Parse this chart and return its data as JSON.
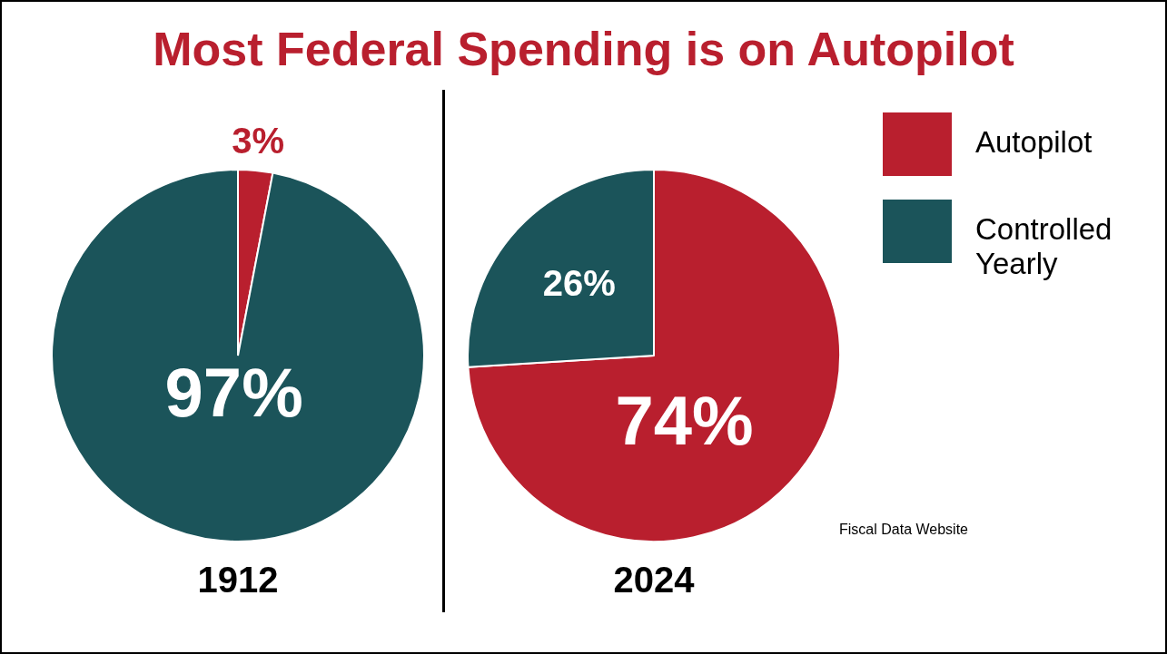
{
  "chart_data": [
    {
      "type": "pie",
      "title": "Most Federal Spending is on Autopilot",
      "xlabel": "1912",
      "categories": [
        null,
        null
      ],
      "values": [
        3,
        97
      ],
      "colors": [
        "#b91f2e",
        "#1b545a"
      ],
      "value_labels": [
        "3%",
        "97%"
      ],
      "legend": false
    },
    {
      "type": "pie",
      "xlabel": "2024",
      "categories": [
        "Autopilot",
        "Controlled Yearly"
      ],
      "values": [
        74,
        26
      ],
      "colors": [
        "#b91f2e",
        "#1b545a"
      ],
      "value_labels": [
        "74%",
        "26%"
      ],
      "legend": "top right",
      "annotations": [
        "Fiscal Data Website"
      ]
    }
  ]
}
